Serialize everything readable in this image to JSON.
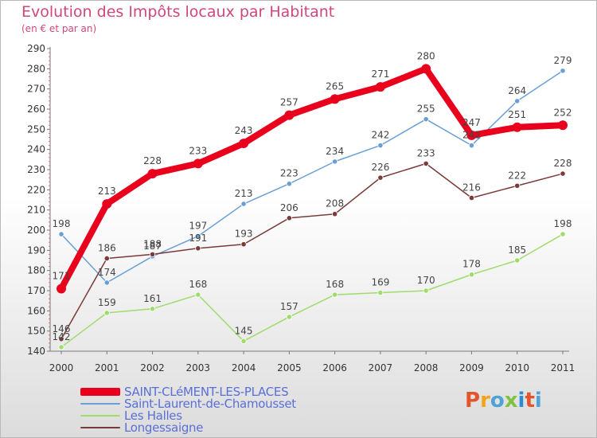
{
  "title": "Evolution des Impôts locaux par Habitant",
  "subtitle": "(en € et par an)",
  "brand": "Proxiti",
  "brand_colors": [
    "#e2542a",
    "#f7a21b",
    "#4da3d6",
    "#7fc241",
    "#2a8dd4",
    "#e2542a",
    "#4da3d6"
  ],
  "chart_data": {
    "type": "line",
    "x": [
      "2000",
      "2001",
      "2002",
      "2003",
      "2004",
      "2005",
      "2006",
      "2007",
      "2008",
      "2009",
      "2010",
      "2011"
    ],
    "ylim": [
      140,
      290
    ],
    "yticks": [
      140,
      150,
      160,
      170,
      180,
      190,
      200,
      210,
      220,
      230,
      240,
      250,
      260,
      270,
      280,
      290
    ],
    "grid": false,
    "legend_position": "bottom-left",
    "series": [
      {
        "name": "SAINT-CLéMENT-LES-PLACES",
        "color": "#e8001c",
        "values": [
          171,
          213,
          228,
          233,
          243,
          257,
          265,
          271,
          280,
          247,
          251,
          252
        ]
      },
      {
        "name": "Saint-Laurent-de-Chamousset",
        "color": "#6a9fd6",
        "values": [
          198,
          174,
          187,
          197,
          213,
          223,
          234,
          242,
          255,
          242,
          264,
          279
        ]
      },
      {
        "name": "Les Halles",
        "color": "#9fdc6c",
        "values": [
          142,
          159,
          161,
          168,
          145,
          157,
          168,
          169,
          170,
          178,
          185,
          198
        ]
      },
      {
        "name": "Longessaigne",
        "color": "#7a3a3a",
        "values": [
          146,
          186,
          188,
          191,
          193,
          206,
          208,
          226,
          233,
          216,
          222,
          228
        ]
      }
    ]
  }
}
